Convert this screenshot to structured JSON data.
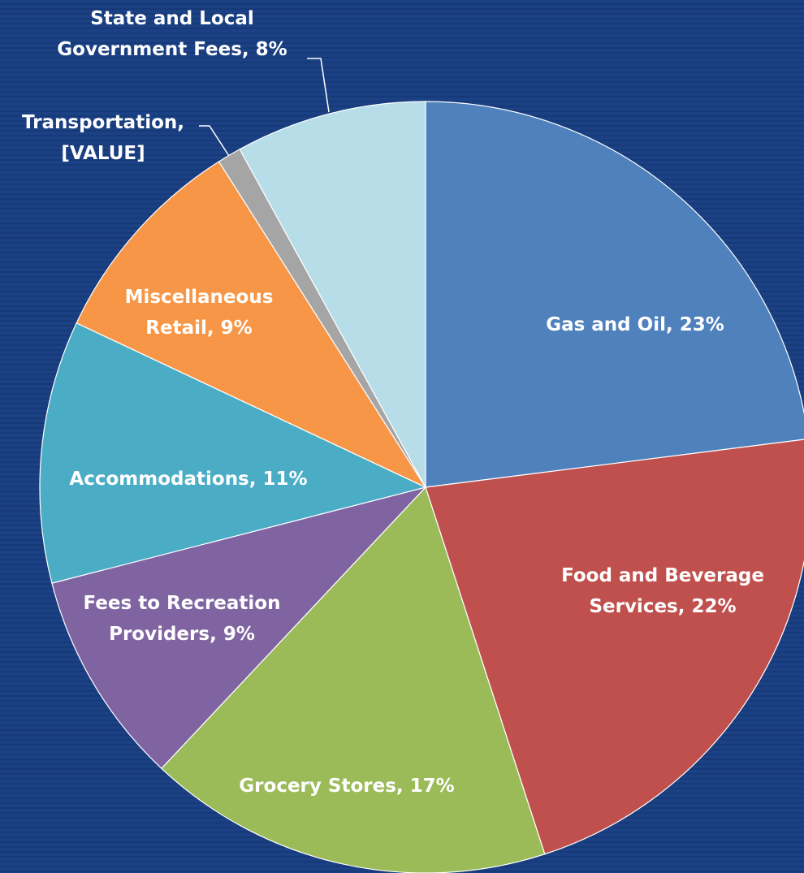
{
  "chart_data": {
    "type": "pie",
    "categories": [
      "Gas and Oil",
      "Food and Beverage Services",
      "Grocery Stores",
      "Fees to Recreation Providers",
      "Accommodations",
      "Miscellaneous Retail",
      "Transportation",
      "State and Local Government Fees"
    ],
    "values": [
      23,
      22,
      17,
      9,
      11,
      9,
      1,
      8
    ],
    "value_labels": [
      "23%",
      "22%",
      "17%",
      "9%",
      "11%",
      "9%",
      "[VALUE]",
      "8%"
    ],
    "colors": [
      "#4f81bd",
      "#c0504d",
      "#9bbb59",
      "#8064a2",
      "#4bacc6",
      "#f79646",
      "#a5a5a5",
      "#b7dde8"
    ]
  }
}
